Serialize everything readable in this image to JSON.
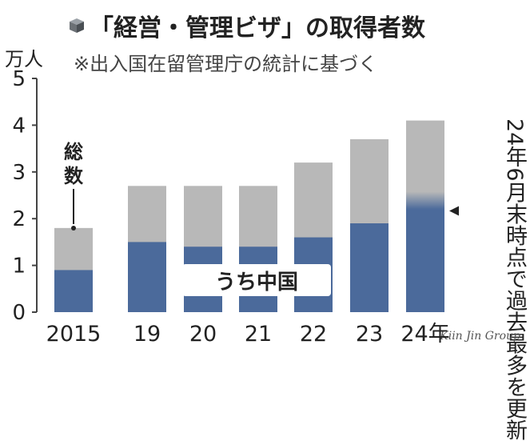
{
  "title": "「経営・管理ビザ」の取得者数",
  "subtitle": "※出入国在留管理庁の統計に基づく",
  "unit_label": "万人",
  "total_label": "総数",
  "china_label": "うち中国",
  "note": "24年6月末時点で過去最多を更新",
  "watermark": "Kiin Jin Group",
  "colors": {
    "total": "#b8b8b8",
    "china": "#4b6a9b",
    "axis": "#444444"
  },
  "chart_data": {
    "type": "bar",
    "title": "「経営・管理ビザ」の取得者数",
    "subtitle": "※出入国在留管理庁の統計に基づく",
    "ylabel": "万人",
    "ylim": [
      0,
      5
    ],
    "yticks": [
      "0",
      "1",
      "2",
      "3",
      "4",
      "5"
    ],
    "categories": [
      "2015",
      "19",
      "20",
      "21",
      "22",
      "23",
      "24年"
    ],
    "series": [
      {
        "name": "総数",
        "values": [
          1.8,
          2.7,
          2.7,
          2.7,
          3.2,
          3.7,
          4.1
        ]
      },
      {
        "name": "うち中国",
        "values": [
          0.9,
          1.5,
          1.4,
          1.4,
          1.6,
          1.9,
          2.2
        ]
      }
    ],
    "grid": false,
    "annotation": "24年6月末時点で過去最多を更新"
  }
}
